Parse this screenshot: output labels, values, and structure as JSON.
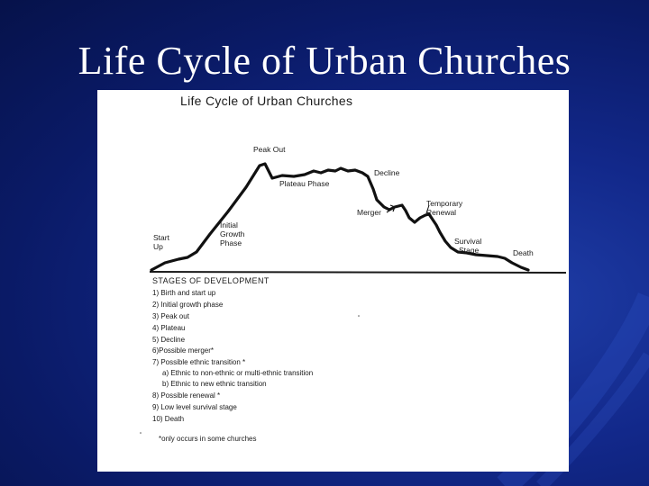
{
  "slide": {
    "title": "Life Cycle of Urban Churches"
  },
  "figure": {
    "title": "Life Cycle  of  Urban  Churches",
    "labels": {
      "start_line1": "Start",
      "start_line2": "Up",
      "initial_line1": "Initial",
      "initial_line2": "Growth",
      "initial_line3": "Phase",
      "peak": "Peak Out",
      "plateau": "Plateau Phase",
      "decline": "Decline",
      "merger": "Merger",
      "temporary_line1": "Temporary",
      "temporary_line2": "Renewal",
      "survival_line1": "Survival",
      "survival_line2": "Stage",
      "death": "Death"
    },
    "stages_title": "STAGES  OF  DEVELOPMENT",
    "stages": [
      "1) Birth and start up",
      "2) Initial growth phase",
      "3) Peak out",
      "4) Plateau",
      "5) Decline",
      "6)Possible merger*",
      "7) Possible ethnic transition *",
      "a) Ethnic to non-ethnic or multi-ethnic transition",
      "b) Ethnic to new ethnic transition",
      "8) Possible renewal *",
      "9) Low level  survival stage",
      "10) Death"
    ],
    "footnote": "*only occurs in some churches"
  },
  "colors": {
    "background": "#12288a",
    "title_text": "#ffffff",
    "figure_bg": "#ffffff",
    "ink": "#1a1a1a"
  }
}
